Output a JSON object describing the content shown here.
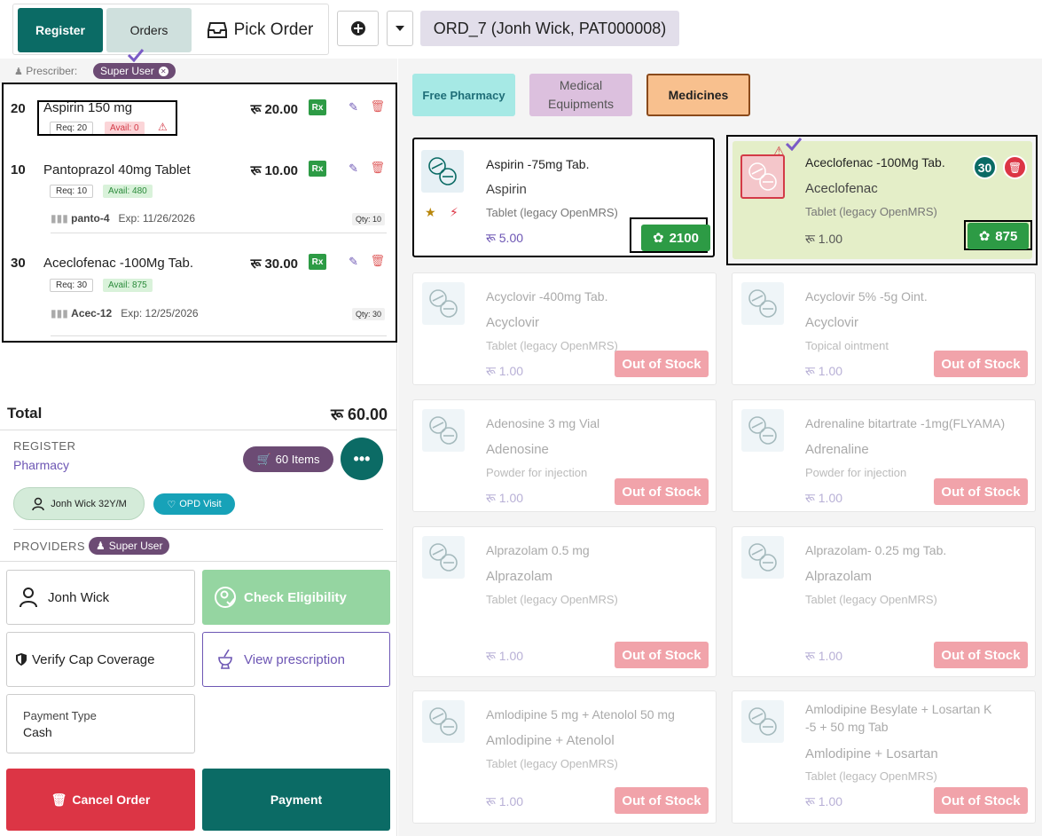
{
  "header": {
    "tab_register": "Register",
    "tab_orders": "Orders",
    "tab_pick": "Pick Order",
    "order_title": "ORD_7 (Jonh Wick, PAT000008)"
  },
  "prescriber": {
    "label": "Prescriber:",
    "name": "Super User"
  },
  "order_lines": [
    {
      "qty": "20",
      "name": "Aspirin 150 mg",
      "price": "रू 20.00",
      "rx": "Rx",
      "req": "Req: 20",
      "avail": "Avail: 0"
    },
    {
      "qty": "10",
      "name": "Pantoprazol 40mg Tablet",
      "price": "रू 10.00",
      "rx": "Rx",
      "req": "Req: 10",
      "avail": "Avail: 480",
      "lot": "panto-4",
      "exp": "Exp: 11/26/2026",
      "lot_qty": "Qty: 10"
    },
    {
      "qty": "30",
      "name": "Aceclofenac -100Mg Tab.",
      "price": "रू 30.00",
      "rx": "Rx",
      "req": "Req: 30",
      "avail": "Avail: 875",
      "lot": "Acec-12",
      "exp": "Exp: 12/25/2026",
      "lot_qty": "Qty: 30"
    }
  ],
  "summary": {
    "total_label": "Total",
    "total_value": "रू 60.00",
    "register_title": "REGISTER",
    "register_name": "Pharmacy",
    "items_count": "60 Items",
    "patient": "Jonh Wick 32Y/M",
    "visit": "OPD Visit",
    "providers_label": "PROVIDERS",
    "provider": "Super User"
  },
  "actions": {
    "patient_button": "Jonh Wick",
    "check_eligibility": "Check Eligibility",
    "verify_cap": "Verify Cap Coverage",
    "view_prescription": "View prescription",
    "payment_type_label": "Payment Type",
    "payment_type_value": "Cash",
    "cancel_order": "Cancel Order",
    "payment": "Payment"
  },
  "categories": [
    "Free Pharmacy",
    "Medical Equipments",
    "Medicines"
  ],
  "medical_equipments_lines": [
    "Medical",
    "Equipments"
  ],
  "products": [
    {
      "name": "Aspirin -75mg Tab.",
      "generic": "Aspirin",
      "form": "Tablet (legacy OpenMRS)",
      "price": "रू 5.00",
      "stock": "2100"
    },
    {
      "name": "Aceclofenac -100Mg Tab.",
      "generic": "Aceclofenac",
      "form": "Tablet (legacy OpenMRS)",
      "price": "रू 1.00",
      "stock": "875",
      "in_cart": "30"
    },
    {
      "name": "Acyclovir -400mg Tab.",
      "generic": "Acyclovir",
      "form": "Tablet (legacy OpenMRS)",
      "price": "रू 1.00",
      "status": "Out of Stock"
    },
    {
      "name": "Acyclovir 5% -5g Oint.",
      "generic": "Acyclovir",
      "form": "Topical ointment",
      "price": "रू 1.00",
      "status": "Out of Stock"
    },
    {
      "name": "Adenosine 3 mg Vial",
      "generic": "Adenosine",
      "form": "Powder for injection",
      "price": "रू 1.00",
      "status": "Out of Stock"
    },
    {
      "name": "Adrenaline bitartrate -1mg(FLYAMA)",
      "generic": "Adrenaline",
      "form": "Powder for injection",
      "price": "रू 1.00",
      "status": "Out of Stock"
    },
    {
      "name": "Alprazolam 0.5 mg",
      "generic": "Alprazolam",
      "form": "Tablet (legacy OpenMRS)",
      "price": "रू 1.00",
      "status": "Out of Stock"
    },
    {
      "name": "Alprazolam- 0.25 mg Tab.",
      "generic": "Alprazolam",
      "form": "Tablet (legacy OpenMRS)",
      "price": "रू 1.00",
      "status": "Out of Stock"
    },
    {
      "name": "Amlodipine 5 mg + Atenolol 50 mg",
      "generic": "Amlodipine + Atenolol",
      "form": "Tablet (legacy OpenMRS)",
      "price": "रू 1.00",
      "status": "Out of Stock"
    },
    {
      "name_line1": "Amlodipine Besylate + Losartan K",
      "name_line2": "-5 + 50 mg Tab",
      "generic": "Amlodipine + Losartan",
      "form": "Tablet (legacy OpenMRS)",
      "price": "रू 1.00",
      "status": "Out of Stock"
    }
  ],
  "icons": [
    "inbox-icon",
    "plus-circle-icon",
    "caret-down-icon",
    "user-icon",
    "close-icon",
    "pencil-icon",
    "trash-icon",
    "warning-icon",
    "barcode-icon",
    "cart-icon",
    "ellipsis-icon",
    "heartbeat-icon",
    "shield-icon",
    "mortar-pestle-icon",
    "pills-icon",
    "star-icon",
    "bolt-icon",
    "checkmark-icon"
  ],
  "colors": {
    "primary": "#0b6b65",
    "accent": "#6c4b74",
    "success": "#2d9b45",
    "danger": "#dc3545",
    "out_of_stock": "#f1a3aa"
  }
}
